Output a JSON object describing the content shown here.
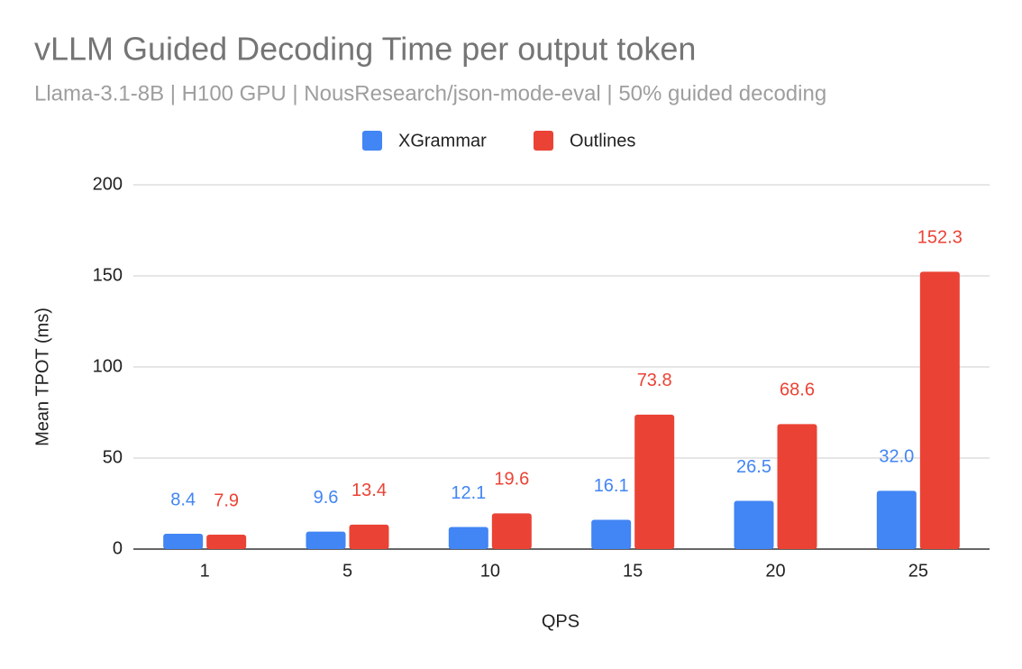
{
  "chart_data": {
    "type": "bar",
    "title": "vLLM Guided Decoding Time per output token",
    "subtitle": "Llama-3.1-8B | H100 GPU | NousResearch/json-mode-eval | 50% guided decoding",
    "x_label": "QPS",
    "y_label": "Mean TPOT (ms)",
    "categories": [
      "1",
      "5",
      "10",
      "15",
      "20",
      "25"
    ],
    "series": [
      {
        "name": "XGrammar",
        "color": "#4285f4",
        "values": [
          8.4,
          9.6,
          12.1,
          16.1,
          26.5,
          32.0
        ],
        "value_labels": [
          "8.4",
          "9.6",
          "12.1",
          "16.1",
          "26.5",
          "32.0"
        ]
      },
      {
        "name": "Outlines",
        "color": "#ea4335",
        "values": [
          7.9,
          13.4,
          19.6,
          73.8,
          68.6,
          152.3
        ]
      }
    ],
    "ylim": [
      0,
      200
    ],
    "yticks": [
      0,
      50,
      100,
      150,
      200
    ],
    "grid": true,
    "legend": "top"
  }
}
